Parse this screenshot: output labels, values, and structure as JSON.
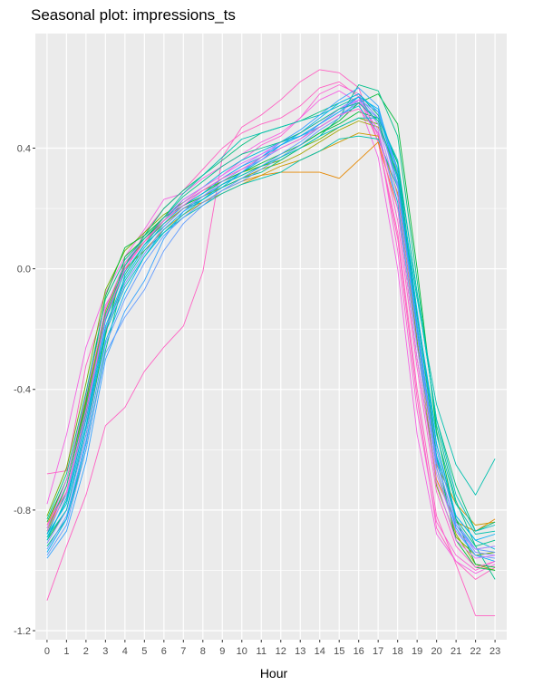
{
  "chart_data": {
    "type": "line",
    "title": "Seasonal plot: impressions_ts",
    "xlabel": "Hour",
    "ylabel": "",
    "x": [
      0,
      1,
      2,
      3,
      4,
      5,
      6,
      7,
      8,
      9,
      10,
      11,
      12,
      13,
      14,
      15,
      16,
      17,
      18,
      19,
      20,
      21,
      22,
      23
    ],
    "xlim": [
      -0.6,
      23.6
    ],
    "ylim": [
      -1.23,
      0.78
    ],
    "yticks": [
      -1.2,
      -0.8,
      -0.4,
      0.0,
      0.4
    ],
    "ytick_labels": [
      "-1.2",
      "-0.8",
      "-0.4",
      "0.0",
      "0.4"
    ],
    "xtick_labels": [
      "0",
      "1",
      "2",
      "3",
      "4",
      "5",
      "6",
      "7",
      "8",
      "9",
      "10",
      "11",
      "12",
      "13",
      "14",
      "15",
      "16",
      "17",
      "18",
      "19",
      "20",
      "21",
      "22",
      "23"
    ],
    "grid": true,
    "legend": "none",
    "background": "#ebebeb",
    "grid_color": "#ffffff",
    "palette": [
      "#f8766d",
      "#e58700",
      "#c99800",
      "#a3a500",
      "#6bb100",
      "#00ba38",
      "#00bf7d",
      "#00c0af",
      "#00bcd8",
      "#00b0f6",
      "#619cff",
      "#b983ff",
      "#e76bf3",
      "#fd61d1",
      "#ff67a4"
    ],
    "series": [
      {
        "color": "#ff61c3",
        "values": [
          -1.1,
          -0.92,
          -0.75,
          -0.52,
          -0.46,
          -0.34,
          -0.26,
          -0.19,
          -0.01,
          0.37,
          0.47,
          0.51,
          0.56,
          0.62,
          0.66,
          0.65,
          0.6,
          0.42,
          0.12,
          -0.4,
          -0.82,
          -0.98,
          -1.15,
          -1.15
        ]
      },
      {
        "color": "#ff61c3",
        "values": [
          -0.68,
          -0.67,
          -0.32,
          -0.12,
          -0.01,
          0.12,
          0.2,
          0.26,
          0.33,
          0.4,
          0.45,
          0.48,
          0.5,
          0.54,
          0.6,
          0.62,
          0.57,
          0.42,
          0.1,
          -0.43,
          -0.86,
          -0.97,
          -1.03,
          -0.99
        ]
      },
      {
        "color": "#f564e3",
        "values": [
          -0.78,
          -0.55,
          -0.26,
          -0.08,
          0.04,
          0.13,
          0.23,
          0.25,
          0.3,
          0.34,
          0.38,
          0.42,
          0.45,
          0.5,
          0.56,
          0.59,
          0.55,
          0.37,
          0.0,
          -0.55,
          -0.88,
          -0.97,
          -1.01,
          -0.98
        ]
      },
      {
        "color": "#fc61d5",
        "values": [
          -0.88,
          -0.72,
          -0.46,
          -0.16,
          0.01,
          0.09,
          0.17,
          0.22,
          0.27,
          0.31,
          0.36,
          0.41,
          0.44,
          0.5,
          0.58,
          0.61,
          0.58,
          0.44,
          0.06,
          -0.47,
          -0.84,
          -0.95,
          -1.0,
          -0.97
        ]
      },
      {
        "color": "#e58700",
        "values": [
          -0.86,
          -0.72,
          -0.45,
          -0.21,
          0.02,
          0.09,
          0.15,
          0.2,
          0.22,
          0.26,
          0.29,
          0.31,
          0.32,
          0.32,
          0.32,
          0.3,
          0.36,
          0.42,
          0.2,
          -0.3,
          -0.7,
          -0.84,
          -0.87,
          -0.83
        ]
      },
      {
        "color": "#c99800",
        "values": [
          -0.85,
          -0.7,
          -0.43,
          -0.15,
          0.0,
          0.06,
          0.13,
          0.18,
          0.22,
          0.25,
          0.28,
          0.31,
          0.34,
          0.36,
          0.39,
          0.42,
          0.45,
          0.44,
          0.25,
          -0.25,
          -0.65,
          -0.78,
          -0.85,
          -0.84
        ]
      },
      {
        "color": "#a3a500",
        "values": [
          -0.87,
          -0.72,
          -0.45,
          -0.14,
          0.02,
          0.09,
          0.15,
          0.2,
          0.24,
          0.27,
          0.3,
          0.33,
          0.35,
          0.38,
          0.42,
          0.46,
          0.49,
          0.47,
          0.32,
          -0.2,
          -0.66,
          -0.88,
          -0.98,
          -1.0
        ]
      },
      {
        "color": "#6bb100",
        "values": [
          -0.82,
          -0.66,
          -0.38,
          -0.07,
          0.06,
          0.12,
          0.18,
          0.22,
          0.26,
          0.29,
          0.32,
          0.34,
          0.36,
          0.4,
          0.43,
          0.47,
          0.5,
          0.48,
          0.3,
          -0.24,
          -0.72,
          -0.89,
          -0.95,
          -0.94
        ]
      },
      {
        "color": "#00ba38",
        "values": [
          -0.84,
          -0.7,
          -0.44,
          -0.09,
          0.07,
          0.11,
          0.17,
          0.21,
          0.24,
          0.28,
          0.31,
          0.34,
          0.37,
          0.41,
          0.45,
          0.49,
          0.55,
          0.58,
          0.48,
          0.0,
          -0.54,
          -0.83,
          -0.98,
          -0.99
        ]
      },
      {
        "color": "#00ba38",
        "values": [
          -0.9,
          -0.8,
          -0.55,
          -0.22,
          0.04,
          0.1,
          0.16,
          0.21,
          0.25,
          0.29,
          0.32,
          0.35,
          0.38,
          0.41,
          0.45,
          0.48,
          0.52,
          0.5,
          0.35,
          -0.15,
          -0.62,
          -0.9,
          -0.99,
          -1.0
        ]
      },
      {
        "color": "#00c08b",
        "values": [
          -0.92,
          -0.83,
          -0.6,
          -0.27,
          -0.02,
          0.08,
          0.14,
          0.2,
          0.23,
          0.27,
          0.3,
          0.32,
          0.36,
          0.4,
          0.44,
          0.5,
          0.61,
          0.59,
          0.44,
          -0.04,
          -0.52,
          -0.77,
          -0.92,
          -1.03
        ]
      },
      {
        "color": "#00bf7d",
        "values": [
          -0.88,
          -0.74,
          -0.48,
          -0.17,
          0.01,
          0.11,
          0.2,
          0.26,
          0.31,
          0.36,
          0.41,
          0.45,
          0.47,
          0.49,
          0.52,
          0.55,
          0.58,
          0.51,
          0.35,
          -0.08,
          -0.5,
          -0.72,
          -0.87,
          -0.84
        ]
      },
      {
        "color": "#00c0af",
        "values": [
          -0.86,
          -0.72,
          -0.46,
          -0.15,
          0.01,
          0.1,
          0.17,
          0.25,
          0.31,
          0.37,
          0.43,
          0.45,
          0.47,
          0.49,
          0.51,
          0.54,
          0.57,
          0.48,
          0.3,
          -0.1,
          -0.45,
          -0.65,
          -0.75,
          -0.63
        ]
      },
      {
        "color": "#00c0af",
        "values": [
          -0.89,
          -0.77,
          -0.5,
          -0.2,
          -0.04,
          0.06,
          0.12,
          0.17,
          0.21,
          0.25,
          0.28,
          0.3,
          0.32,
          0.36,
          0.39,
          0.43,
          0.44,
          0.43,
          0.27,
          -0.15,
          -0.55,
          -0.78,
          -0.88,
          -0.87
        ]
      },
      {
        "color": "#00bcd8",
        "values": [
          -0.9,
          -0.76,
          -0.5,
          -0.17,
          -0.01,
          0.08,
          0.16,
          0.23,
          0.27,
          0.32,
          0.36,
          0.39,
          0.42,
          0.44,
          0.47,
          0.51,
          0.54,
          0.45,
          0.22,
          -0.26,
          -0.62,
          -0.82,
          -0.9,
          -0.93
        ]
      },
      {
        "color": "#00b0f6",
        "values": [
          -0.94,
          -0.83,
          -0.58,
          -0.24,
          -0.08,
          0.04,
          0.13,
          0.19,
          0.23,
          0.27,
          0.32,
          0.36,
          0.41,
          0.45,
          0.5,
          0.55,
          0.58,
          0.52,
          0.3,
          -0.2,
          -0.63,
          -0.86,
          -0.95,
          -0.97
        ]
      },
      {
        "color": "#35a2ff",
        "values": [
          -0.96,
          -0.87,
          -0.64,
          -0.3,
          -0.14,
          -0.04,
          0.1,
          0.19,
          0.24,
          0.28,
          0.32,
          0.37,
          0.42,
          0.46,
          0.51,
          0.56,
          0.6,
          0.54,
          0.3,
          -0.18,
          -0.64,
          -0.85,
          -0.93,
          -0.92
        ]
      },
      {
        "color": "#619cff",
        "values": [
          -0.95,
          -0.85,
          -0.6,
          -0.28,
          -0.16,
          -0.07,
          0.06,
          0.15,
          0.21,
          0.26,
          0.3,
          0.34,
          0.38,
          0.42,
          0.47,
          0.51,
          0.55,
          0.5,
          0.28,
          -0.22,
          -0.66,
          -0.87,
          -0.95,
          -0.96
        ]
      },
      {
        "color": "#619cff",
        "values": [
          -0.93,
          -0.82,
          -0.57,
          -0.25,
          -0.1,
          0.02,
          0.11,
          0.17,
          0.22,
          0.26,
          0.29,
          0.33,
          0.37,
          0.41,
          0.46,
          0.5,
          0.56,
          0.52,
          0.32,
          -0.15,
          -0.6,
          -0.84,
          -0.93,
          -0.94
        ]
      },
      {
        "color": "#7f8cff",
        "values": [
          -0.91,
          -0.8,
          -0.55,
          -0.2,
          -0.05,
          0.05,
          0.14,
          0.2,
          0.24,
          0.29,
          0.33,
          0.36,
          0.4,
          0.43,
          0.48,
          0.53,
          0.57,
          0.5,
          0.27,
          -0.22,
          -0.64,
          -0.85,
          -0.94,
          -0.95
        ]
      },
      {
        "color": "#b983ff",
        "values": [
          -0.87,
          -0.75,
          -0.49,
          -0.16,
          0.0,
          0.09,
          0.16,
          0.22,
          0.26,
          0.3,
          0.34,
          0.38,
          0.41,
          0.44,
          0.48,
          0.52,
          0.56,
          0.48,
          0.24,
          -0.26,
          -0.68,
          -0.87,
          -0.93,
          -0.92
        ]
      },
      {
        "color": "#dc71fa",
        "values": [
          -0.86,
          -0.7,
          -0.42,
          -0.13,
          0.02,
          0.1,
          0.17,
          0.23,
          0.27,
          0.31,
          0.35,
          0.38,
          0.42,
          0.45,
          0.49,
          0.53,
          0.56,
          0.46,
          0.2,
          -0.3,
          -0.71,
          -0.9,
          -0.96,
          -0.95
        ]
      },
      {
        "color": "#00c08b",
        "values": [
          -0.83,
          -0.68,
          -0.41,
          -0.1,
          0.03,
          0.1,
          0.17,
          0.24,
          0.29,
          0.34,
          0.38,
          0.4,
          0.42,
          0.45,
          0.49,
          0.53,
          0.55,
          0.49,
          0.31,
          -0.16,
          -0.58,
          -0.83,
          -0.92,
          -0.9
        ]
      },
      {
        "color": "#00b0f6",
        "values": [
          -0.88,
          -0.78,
          -0.52,
          -0.19,
          -0.03,
          0.07,
          0.15,
          0.21,
          0.25,
          0.3,
          0.34,
          0.37,
          0.41,
          0.44,
          0.48,
          0.52,
          0.57,
          0.53,
          0.33,
          -0.14,
          -0.58,
          -0.82,
          -0.9,
          -0.88
        ]
      },
      {
        "color": "#fd61d1",
        "values": [
          -0.85,
          -0.74,
          -0.47,
          -0.16,
          0.0,
          0.09,
          0.16,
          0.21,
          0.26,
          0.3,
          0.33,
          0.37,
          0.4,
          0.43,
          0.47,
          0.51,
          0.53,
          0.45,
          0.16,
          -0.33,
          -0.74,
          -0.92,
          -0.99,
          -0.97
        ]
      },
      {
        "color": "#00bfc4",
        "values": [
          -0.89,
          -0.8,
          -0.53,
          -0.21,
          -0.06,
          0.04,
          0.12,
          0.18,
          0.23,
          0.28,
          0.31,
          0.34,
          0.37,
          0.4,
          0.44,
          0.47,
          0.5,
          0.5,
          0.36,
          -0.08,
          -0.5,
          -0.75,
          -0.87,
          -0.85
        ]
      }
    ]
  }
}
